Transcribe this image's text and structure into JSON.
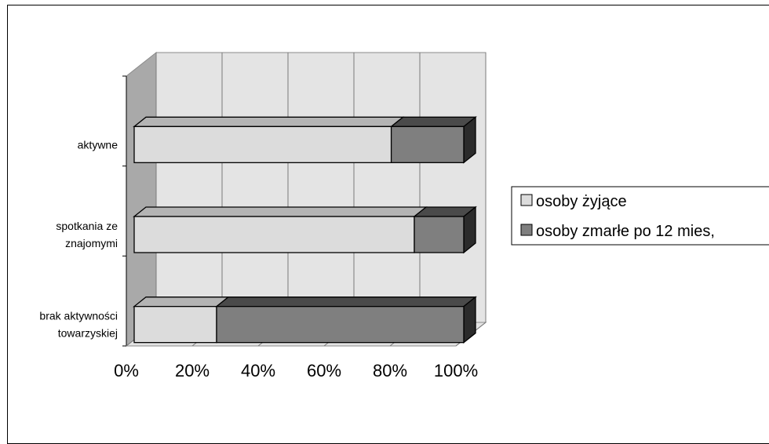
{
  "chart_data": {
    "type": "bar",
    "orientation": "horizontal",
    "stacked": "percent",
    "style": "3d",
    "categories": [
      "aktywne",
      "spotkania ze znajomymi",
      "brak aktywności towarzyskiej"
    ],
    "category_lines": [
      [
        "aktywne"
      ],
      [
        "spotkania ze",
        "znajomymi"
      ],
      [
        "brak aktywności",
        "towarzyskiej"
      ]
    ],
    "series": [
      {
        "name": "osoby żyjące",
        "values": [
          78,
          85,
          25
        ],
        "color": "#dcdcdc",
        "side_color": "#b4b4b4"
      },
      {
        "name": "osoby zmarłe po 12 mies,",
        "values": [
          22,
          15,
          75
        ],
        "color": "#7f7f7f",
        "side_color": "#4a4a4a"
      }
    ],
    "xticks": [
      "0%",
      "20%",
      "40%",
      "60%",
      "80%",
      "100%"
    ],
    "xlim": [
      0,
      100
    ],
    "grid": true,
    "legend": "right"
  }
}
